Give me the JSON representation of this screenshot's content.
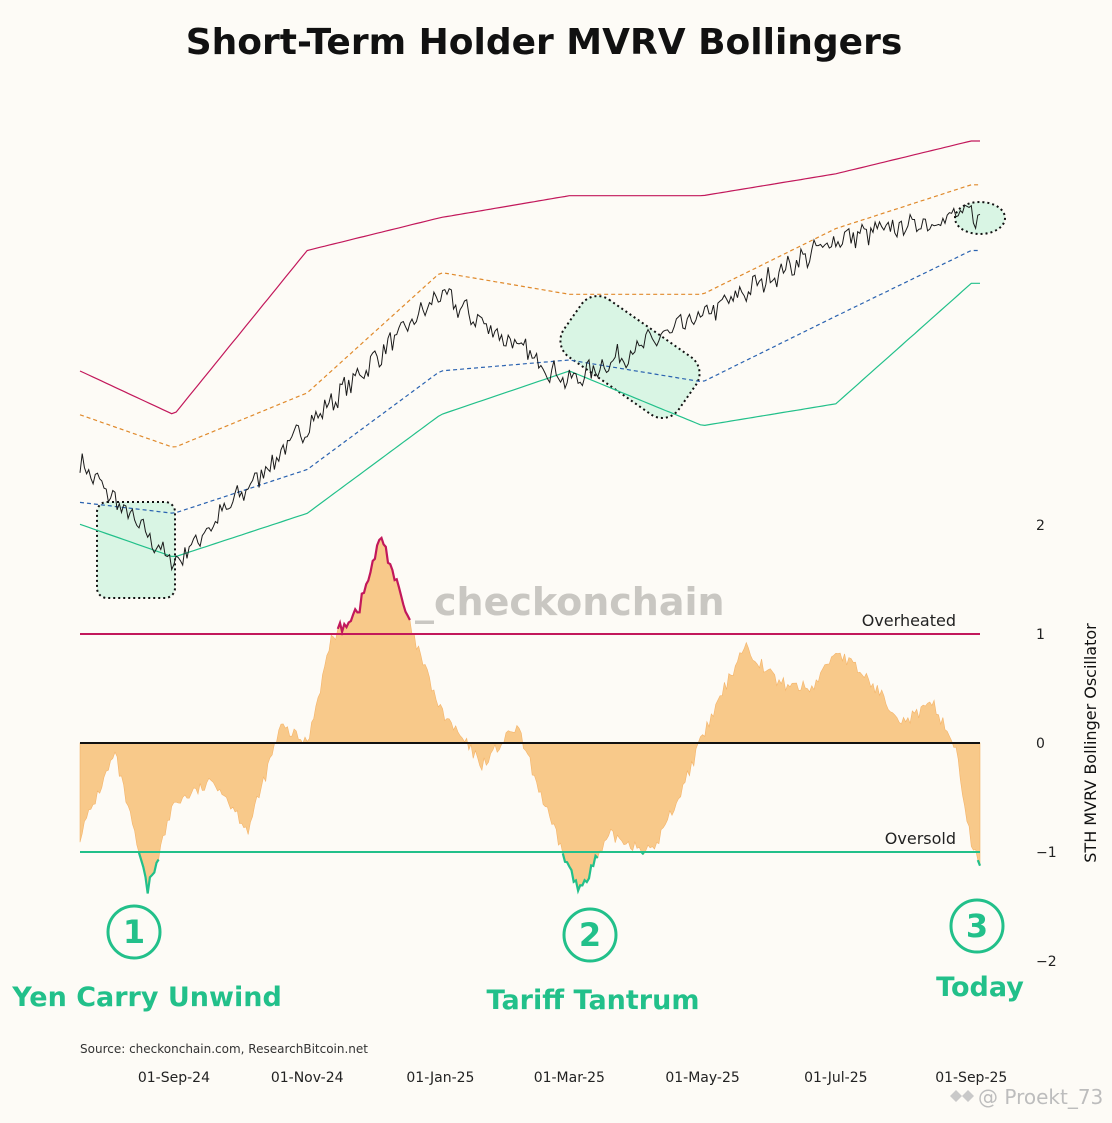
{
  "title": "Short-Term Holder MVRV Bollingers",
  "source": "Source: checkonchain.com, ResearchBitcoin.net",
  "watermark": "_checkonchain",
  "credit": "@ Proekt_73",
  "colors": {
    "price": "#1a1a1a",
    "upper_band": "#c2185b",
    "mid_upper": "#e08a2c",
    "mid_lower": "#2a62b0",
    "lower_band": "#22c08a",
    "oscillator_fill": "#f8c98a",
    "overheated": "#c2185b",
    "oversold": "#22c08a",
    "highlight_fill": "#d9f5e4",
    "event_green": "#22c08a"
  },
  "chart_data": [
    {
      "type": "line",
      "panel": "price_with_bollinger_bands",
      "x_dates": [
        "2024-07-20",
        "2024-09-01",
        "2024-11-01",
        "2025-01-01",
        "2025-03-01",
        "2025-05-01",
        "2025-07-01",
        "2025-09-01",
        "2025-09-05"
      ],
      "series": [
        {
          "role": "price",
          "values": [
            1.08,
            0.62,
            1.25,
            1.85,
            1.45,
            1.75,
            2.1,
            2.22,
            2.2
          ]
        },
        {
          "role": "upper_band",
          "values": [
            1.5,
            1.3,
            2.05,
            2.2,
            2.3,
            2.3,
            2.4,
            2.55,
            2.55
          ]
        },
        {
          "role": "mid_upper",
          "values": [
            1.3,
            1.15,
            1.4,
            1.95,
            1.85,
            1.85,
            2.15,
            2.35,
            2.35
          ]
        },
        {
          "role": "mid_lower",
          "values": [
            0.9,
            0.85,
            1.05,
            1.5,
            1.55,
            1.45,
            1.75,
            2.05,
            2.05
          ]
        },
        {
          "role": "lower_band",
          "values": [
            0.8,
            0.65,
            0.85,
            1.3,
            1.5,
            1.25,
            1.35,
            1.9,
            1.9
          ]
        }
      ],
      "highlights": [
        "yen-carry-unwind",
        "tariff-tantrum",
        "today"
      ]
    },
    {
      "type": "area",
      "panel": "oscillator",
      "ylabel": "STH MVRV Bollinger Oscillator",
      "ylim": [
        -2,
        2
      ],
      "yticks": [
        "2",
        "1",
        "0",
        "−1",
        "−2"
      ],
      "reference_lines": [
        {
          "label": "Overheated",
          "value": 1
        },
        {
          "label": "Oversold",
          "value": -1
        }
      ],
      "x_tick_labels": [
        "01-Sep-24",
        "01-Nov-24",
        "01-Jan-25",
        "01-Mar-25",
        "01-May-25",
        "01-Jul-25",
        "01-Sep-25"
      ],
      "x": [
        "2024-07-20",
        "2024-08-05",
        "2024-08-20",
        "2024-09-01",
        "2024-09-20",
        "2024-10-05",
        "2024-10-20",
        "2024-11-01",
        "2024-11-12",
        "2024-11-25",
        "2024-12-05",
        "2024-12-20",
        "2025-01-01",
        "2025-01-20",
        "2025-02-05",
        "2025-02-20",
        "2025-03-05",
        "2025-03-20",
        "2025-04-08",
        "2025-04-20",
        "2025-05-01",
        "2025-05-20",
        "2025-06-05",
        "2025-06-20",
        "2025-07-01",
        "2025-07-15",
        "2025-08-01",
        "2025-08-15",
        "2025-08-25",
        "2025-09-01",
        "2025-09-05"
      ],
      "values": [
        -0.85,
        -0.1,
        -1.35,
        -0.55,
        -0.35,
        -0.8,
        0.15,
        0.0,
        0.95,
        1.25,
        1.9,
        0.95,
        0.3,
        -0.2,
        0.15,
        -0.7,
        -1.35,
        -0.85,
        -1.0,
        -0.5,
        0.05,
        0.9,
        0.55,
        0.5,
        0.85,
        0.6,
        0.2,
        0.35,
        -0.05,
        -0.95,
        -1.1
      ]
    }
  ],
  "events": [
    {
      "number": "1",
      "label": "Yen Carry Unwind"
    },
    {
      "number": "2",
      "label": "Tariff Tantrum"
    },
    {
      "number": "3",
      "label": "Today"
    }
  ]
}
